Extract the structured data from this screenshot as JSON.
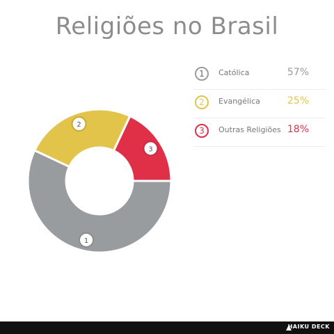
{
  "title": "Religiões no Brasil",
  "chart_data": {
    "type": "pie",
    "title": "Religiões no Brasil",
    "categories": [
      "Católica",
      "Evangélica",
      "Outras Religiões"
    ],
    "values": [
      57,
      25,
      18
    ],
    "units": "%",
    "donut": true,
    "legend": "right",
    "colors": [
      "#999c9f",
      "#e3c44b",
      "#e03048"
    ]
  },
  "legend": [
    {
      "num": "1",
      "label": "Católica",
      "pct": "57%",
      "color": "#999c9f"
    },
    {
      "num": "2",
      "label": "Evangélica",
      "pct": "25%",
      "color": "#e3c44b"
    },
    {
      "num": "3",
      "label": "Outras Religiões",
      "pct": "18%",
      "color": "#e03048"
    }
  ],
  "markers": [
    "1",
    "2",
    "3"
  ],
  "footer": {
    "brand": "HAIKU DECK"
  }
}
